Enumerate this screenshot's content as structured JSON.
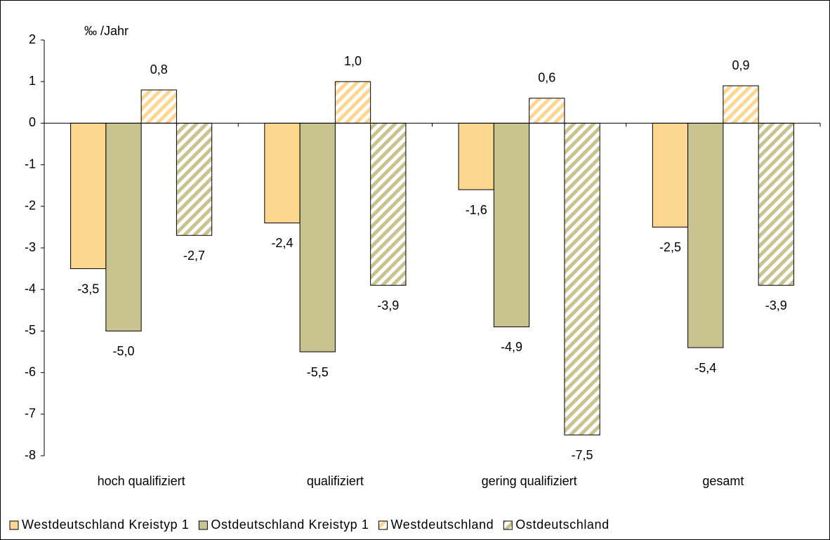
{
  "chart_data": {
    "type": "bar",
    "y_label": "‰ /Jahr",
    "categories": [
      "hoch qualifiziert",
      "qualifiziert",
      "gering qualifiziert",
      "gesamt"
    ],
    "series": [
      {
        "name": "Westdeutschland Kreistyp 1",
        "color": "#fdd68f",
        "pattern": "solid",
        "values": [
          -3.5,
          -2.4,
          -1.6,
          -2.5
        ],
        "value_labels": [
          "-3,5",
          "-2,4",
          "-1,6",
          "-2,5"
        ]
      },
      {
        "name": "Ostdeutschland Kreistyp 1",
        "color": "#c8c38f",
        "pattern": "solid",
        "values": [
          -5.0,
          -5.5,
          -4.9,
          -5.4
        ],
        "value_labels": [
          "-5,0",
          "-5,5",
          "-4,9",
          "-5,4"
        ]
      },
      {
        "name": "Westdeutschland",
        "color": "#fdd68f",
        "pattern": "hatch",
        "values": [
          0.8,
          1.0,
          0.6,
          0.9
        ],
        "value_labels": [
          "0,8",
          "1,0",
          "0,6",
          "0,9"
        ]
      },
      {
        "name": "Ostdeutschland",
        "color": "#c8c38f",
        "pattern": "hatch",
        "values": [
          -2.7,
          -3.9,
          -7.5,
          -3.9
        ],
        "value_labels": [
          "-2,7",
          "-3,9",
          "-7,5",
          "-3,9"
        ]
      }
    ],
    "ylim": [
      -8,
      2
    ],
    "yticks": [
      -8,
      -7,
      -6,
      -5,
      -4,
      -3,
      -2,
      -1,
      0,
      1,
      2
    ],
    "grid": false,
    "legend": "bottom"
  }
}
